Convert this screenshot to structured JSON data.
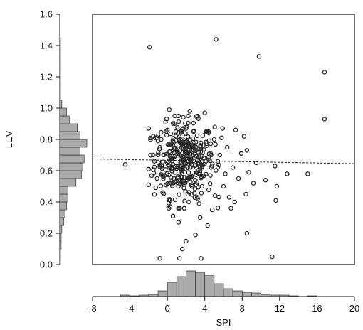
{
  "chart_data": {
    "type": "scatter",
    "xlabel": "SPI",
    "ylabel": "LEV",
    "xlim": [
      -8,
      20
    ],
    "ylim": [
      0,
      1.6
    ],
    "x_ticks": [
      "-8",
      "-4",
      "0",
      "4",
      "8",
      "12",
      "16",
      "20"
    ],
    "y_ticks": [
      "0.0",
      "0.2",
      "0.4",
      "0.6",
      "0.8",
      "1.0",
      "1.2",
      "1.4",
      "1.6"
    ],
    "grid": false,
    "marker_color": "#2a2a2a",
    "hist_fill": "#aaaaaa",
    "trend_line": {
      "style": "dashed",
      "x": [
        -8,
        20
      ],
      "y": [
        0.675,
        0.645
      ]
    },
    "points": [
      [
        -1.9,
        1.39
      ],
      [
        5.2,
        1.44
      ],
      [
        9.8,
        1.33
      ],
      [
        16.8,
        1.23
      ],
      [
        16.8,
        0.93
      ],
      [
        -4.5,
        0.64
      ],
      [
        -2.0,
        0.87
      ],
      [
        -2.0,
        0.51
      ],
      [
        -2.0,
        0.61
      ],
      [
        -1.5,
        0.7
      ],
      [
        -1.3,
        0.81
      ],
      [
        -1.0,
        0.79
      ],
      [
        -0.8,
        0.75
      ],
      [
        -0.5,
        0.46
      ],
      [
        -0.3,
        0.57
      ],
      [
        -0.2,
        0.91
      ],
      [
        0.2,
        0.99
      ],
      [
        0.6,
        0.68
      ],
      [
        0.3,
        0.41
      ],
      [
        0.3,
        0.37
      ],
      [
        0.6,
        0.31
      ],
      [
        0.7,
        0.55
      ],
      [
        1.2,
        0.95
      ],
      [
        1.2,
        0.27
      ],
      [
        1.5,
        0.62
      ],
      [
        1.8,
        0.36
      ],
      [
        2.2,
        0.45
      ],
      [
        2.4,
        0.98
      ],
      [
        2.8,
        0.85
      ],
      [
        3.0,
        0.19
      ],
      [
        3.2,
        0.43
      ],
      [
        3.4,
        0.39
      ],
      [
        3.7,
        0.5
      ],
      [
        4.0,
        0.97
      ],
      [
        4.2,
        0.76
      ],
      [
        4.3,
        0.25
      ],
      [
        4.6,
        0.57
      ],
      [
        4.8,
        0.35
      ],
      [
        5.0,
        0.8
      ],
      [
        5.1,
        0.44
      ],
      [
        5.4,
        0.66
      ],
      [
        5.8,
        0.81
      ],
      [
        6.2,
        0.58
      ],
      [
        6.4,
        0.75
      ],
      [
        6.8,
        0.36
      ],
      [
        7.0,
        0.62
      ],
      [
        7.3,
        0.86
      ],
      [
        7.6,
        0.55
      ],
      [
        7.9,
        0.71
      ],
      [
        8.2,
        0.82
      ],
      [
        8.4,
        0.45
      ],
      [
        8.5,
        0.73
      ],
      [
        8.7,
        0.59
      ],
      [
        9.2,
        0.52
      ],
      [
        9.5,
        0.65
      ],
      [
        10.5,
        0.54
      ],
      [
        11.5,
        0.63
      ],
      [
        11.6,
        0.41
      ],
      [
        11.7,
        0.5
      ],
      [
        11.2,
        0.05
      ],
      [
        12.8,
        0.58
      ],
      [
        15.0,
        0.58
      ],
      [
        8.5,
        0.2
      ],
      [
        2.0,
        0.15
      ],
      [
        -0.8,
        0.04
      ],
      [
        1.3,
        0.04
      ],
      [
        3.6,
        0.04
      ],
      [
        1.6,
        0.1
      ],
      [
        3.5,
        0.3
      ],
      [
        2.6,
        0.73
      ],
      [
        5.6,
        0.7
      ],
      [
        6.0,
        0.5
      ],
      [
        0.0,
        0.86
      ],
      [
        1.9,
        0.9
      ],
      [
        3.1,
        0.62
      ],
      [
        -0.6,
        0.63
      ],
      [
        4.4,
        0.85
      ],
      [
        2.3,
        0.4
      ],
      [
        6.6,
        0.43
      ],
      [
        -1.1,
        0.55
      ],
      [
        0.9,
        0.82
      ],
      [
        3.9,
        0.68
      ],
      [
        5.9,
        0.87
      ],
      [
        7.2,
        0.4
      ]
    ],
    "dense_cluster": {
      "x_range": [
        -1.8,
        5.5
      ],
      "y_range": [
        0.36,
        0.95
      ],
      "n": 330,
      "center": [
        1.8,
        0.67
      ],
      "sd": [
        1.6,
        0.12
      ]
    },
    "x_histogram": {
      "bins": [
        -5,
        -4,
        -3,
        -2,
        -1,
        0,
        1,
        2,
        3,
        4,
        5,
        6,
        7,
        8,
        9,
        10,
        11,
        12,
        13,
        14,
        15,
        16,
        17
      ],
      "counts": [
        2,
        1,
        2,
        3,
        8,
        20,
        28,
        36,
        34,
        30,
        18,
        11,
        8,
        6,
        5,
        3,
        2,
        2,
        1,
        0,
        1,
        0
      ]
    },
    "y_histogram": {
      "bins": [
        0.0,
        0.05,
        0.1,
        0.15,
        0.2,
        0.25,
        0.3,
        0.35,
        0.4,
        0.45,
        0.5,
        0.55,
        0.6,
        0.65,
        0.7,
        0.75,
        0.8,
        0.85,
        0.9,
        0.95,
        1.0,
        1.05,
        1.1,
        1.15,
        1.2,
        1.25,
        1.3,
        1.35,
        1.4,
        1.45
      ],
      "counts": [
        1,
        1,
        2,
        2,
        3,
        6,
        8,
        10,
        12,
        12,
        24,
        32,
        34,
        36,
        30,
        40,
        30,
        26,
        14,
        10,
        3,
        1,
        1,
        1,
        1,
        1,
        1,
        1,
        1
      ]
    }
  }
}
